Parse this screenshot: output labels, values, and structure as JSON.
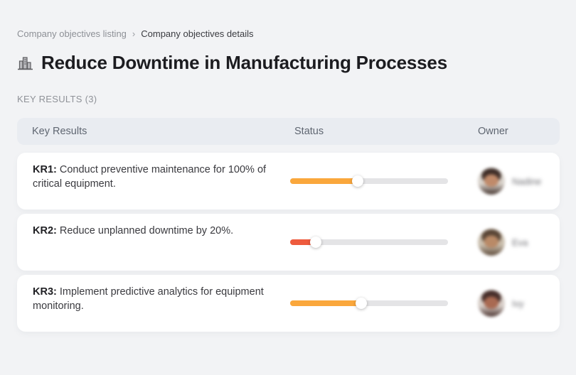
{
  "breadcrumb": {
    "separator": "›",
    "items": [
      {
        "label": "Company objectives listing"
      },
      {
        "label": "Company objectives details"
      }
    ]
  },
  "header": {
    "icon": "buildings-icon",
    "title": "Reduce Downtime in Manufacturing Processes"
  },
  "section": {
    "label": "KEY RESULTS (3)"
  },
  "table": {
    "columns": {
      "kr": "Key Results",
      "status": "Status",
      "owner": "Owner"
    },
    "rows": [
      {
        "kr_label": "KR1:",
        "kr_text": " Conduct preventive maintenance for 100% of critical equipment.",
        "progress_percent": 43,
        "progress_color": "#FAA73C",
        "owner_name": "Nadine",
        "avatar_colors": {
          "hair": "#3f2e28",
          "skin": "#c08a6a",
          "bg": "#d9d3cc"
        }
      },
      {
        "kr_label": "KR2:",
        "kr_text": " Reduce unplanned downtime by 20%.",
        "progress_percent": 16,
        "progress_color": "#EE5B3E",
        "owner_name": "Eva",
        "avatar_colors": {
          "hair": "#5a4636",
          "skin": "#b98a67",
          "bg": "#cabfae"
        }
      },
      {
        "kr_label": "KR3:",
        "kr_text": " Implement predictive analytics for equipment monitoring.",
        "progress_percent": 45,
        "progress_color": "#FAA73C",
        "owner_name": "Ivy",
        "avatar_colors": {
          "hair": "#472f2b",
          "skin": "#a96a52",
          "bg": "#d8cfc9"
        }
      }
    ]
  },
  "colors": {
    "page_bg": "#F2F3F5",
    "card_bg": "#FFFFFF",
    "table_header_bg": "#E9ECF1",
    "track": "#E4E4E6",
    "orange": "#FAA73C",
    "red": "#EE5B3E"
  }
}
